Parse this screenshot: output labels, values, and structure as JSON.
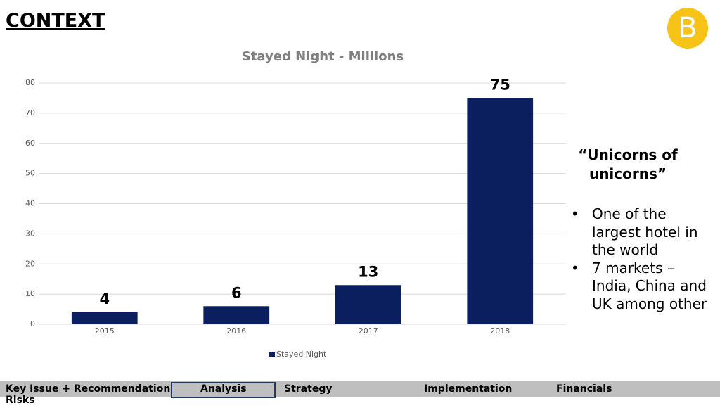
{
  "header": {
    "title": "CONTEXT",
    "logo": "B"
  },
  "chart_data": {
    "type": "bar",
    "title": "Stayed Night - Millions",
    "categories": [
      "2015",
      "2016",
      "2017",
      "2018"
    ],
    "series": [
      {
        "name": "Stayed Night",
        "color": "#0b1f5e",
        "values": [
          4,
          6,
          13,
          75
        ]
      }
    ],
    "ylim": [
      0,
      80
    ],
    "yticks": [
      0,
      10,
      20,
      30,
      40,
      50,
      60,
      70,
      80
    ],
    "grid": true,
    "legend": "bottom"
  },
  "sidebar": {
    "quote": "“Unicorns of unicorns”",
    "bullets": [
      "One of the largest hotel in the world",
      "7 markets – India, China and UK among other"
    ]
  },
  "nav": {
    "items": [
      "Key Issue + Recommendation",
      "Analysis",
      "Strategy",
      "Implementation",
      "Financials",
      "Risks"
    ]
  }
}
